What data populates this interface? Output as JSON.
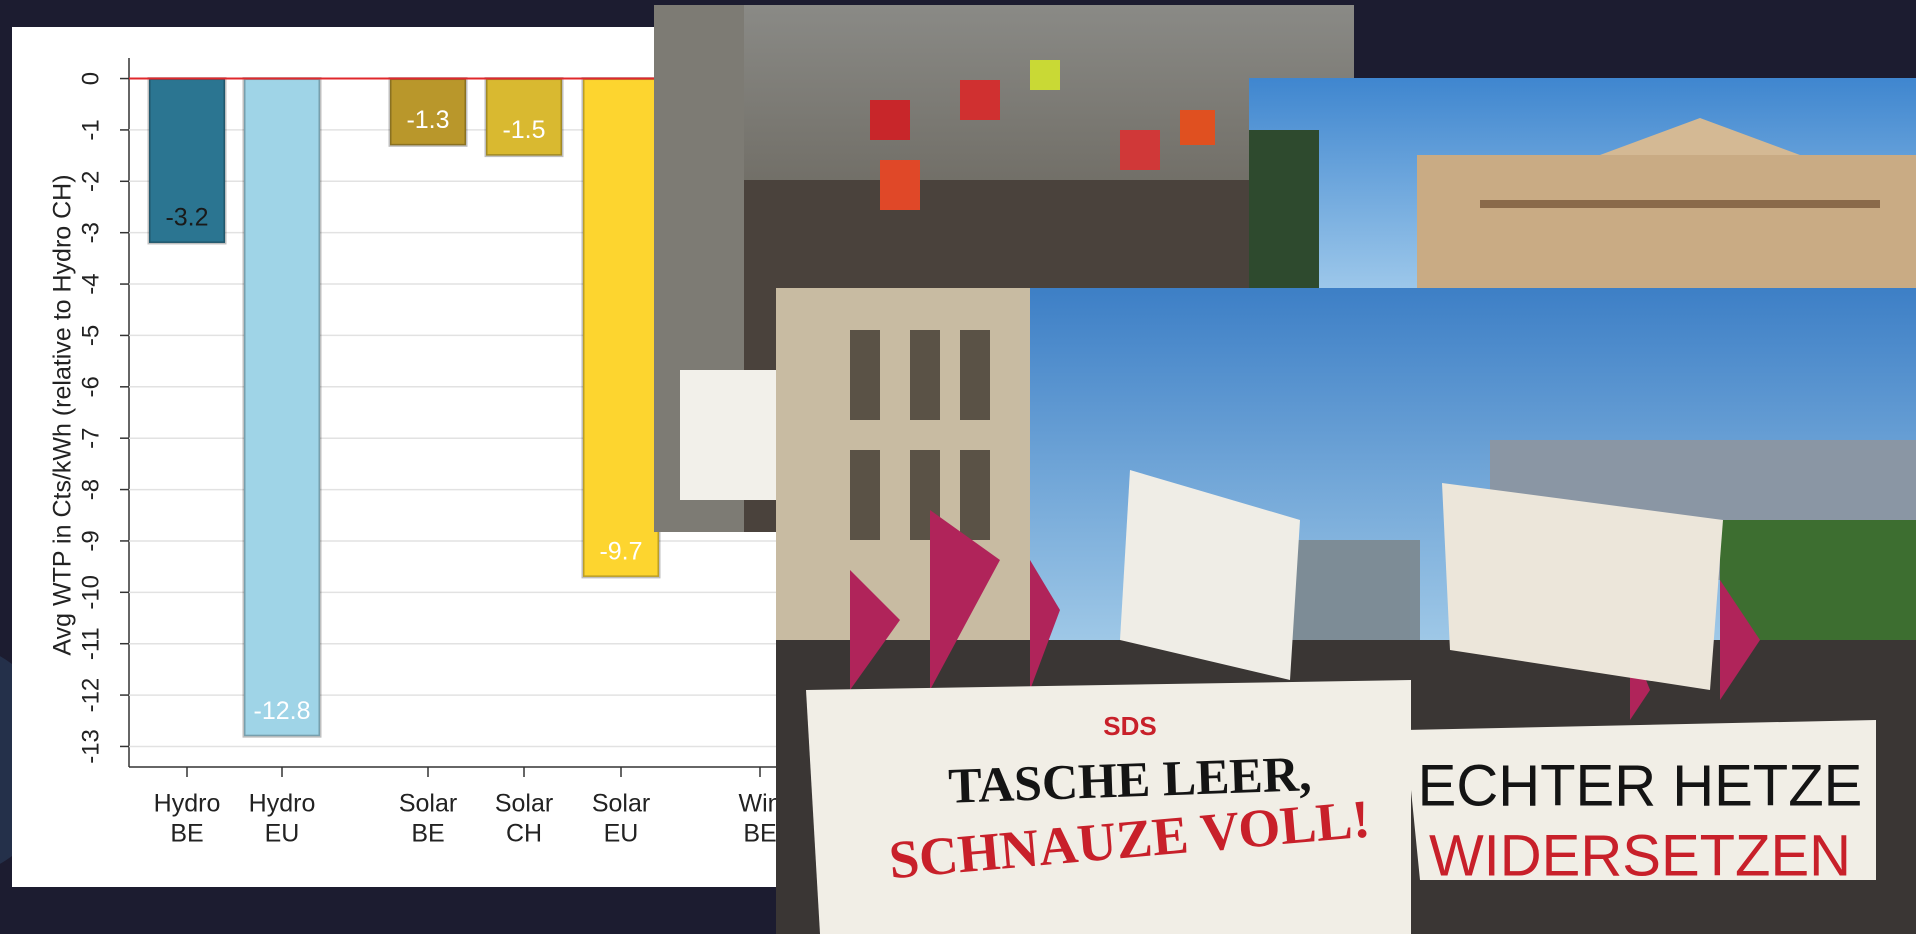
{
  "chart_data": {
    "type": "bar",
    "y_label": "Avg WTP in Cts/kWh (relative to Hydro CH)",
    "categories": [
      [
        "Hydro",
        "BE"
      ],
      [
        "Hydro",
        "EU"
      ],
      [
        "Solar",
        "BE"
      ],
      [
        "Solar",
        "CH"
      ],
      [
        "Solar",
        "EU"
      ],
      [
        "Win",
        "BE"
      ]
    ],
    "values": [
      -3.2,
      -12.8,
      -1.3,
      -1.5,
      -9.7,
      null
    ],
    "colors": [
      "#2b7591",
      "#9fd4e7",
      "#b9972b",
      "#d9b930",
      "#fdd52f",
      null
    ],
    "label_colors": [
      "#1a1a1a",
      "#ffffff",
      "#ffffff",
      "#ffffff",
      "#ffffff",
      null
    ],
    "ylim": [
      -13.4,
      0.4
    ],
    "yticks": [
      0,
      -1,
      -2,
      -3,
      -4,
      -5,
      -6,
      -7,
      -8,
      -9,
      -10,
      -11,
      -12,
      -13
    ],
    "grid": true,
    "reference_line": 0,
    "reference_color": "#e0282c"
  },
  "photos": {
    "banner_top": "SDS",
    "banner_line1": "TASCHE LEER,",
    "banner_line2": "SCHNAUZE VOLL!",
    "banner_right1": "ECHTER HETZE",
    "banner_right2": "WIDERSETZEN"
  }
}
